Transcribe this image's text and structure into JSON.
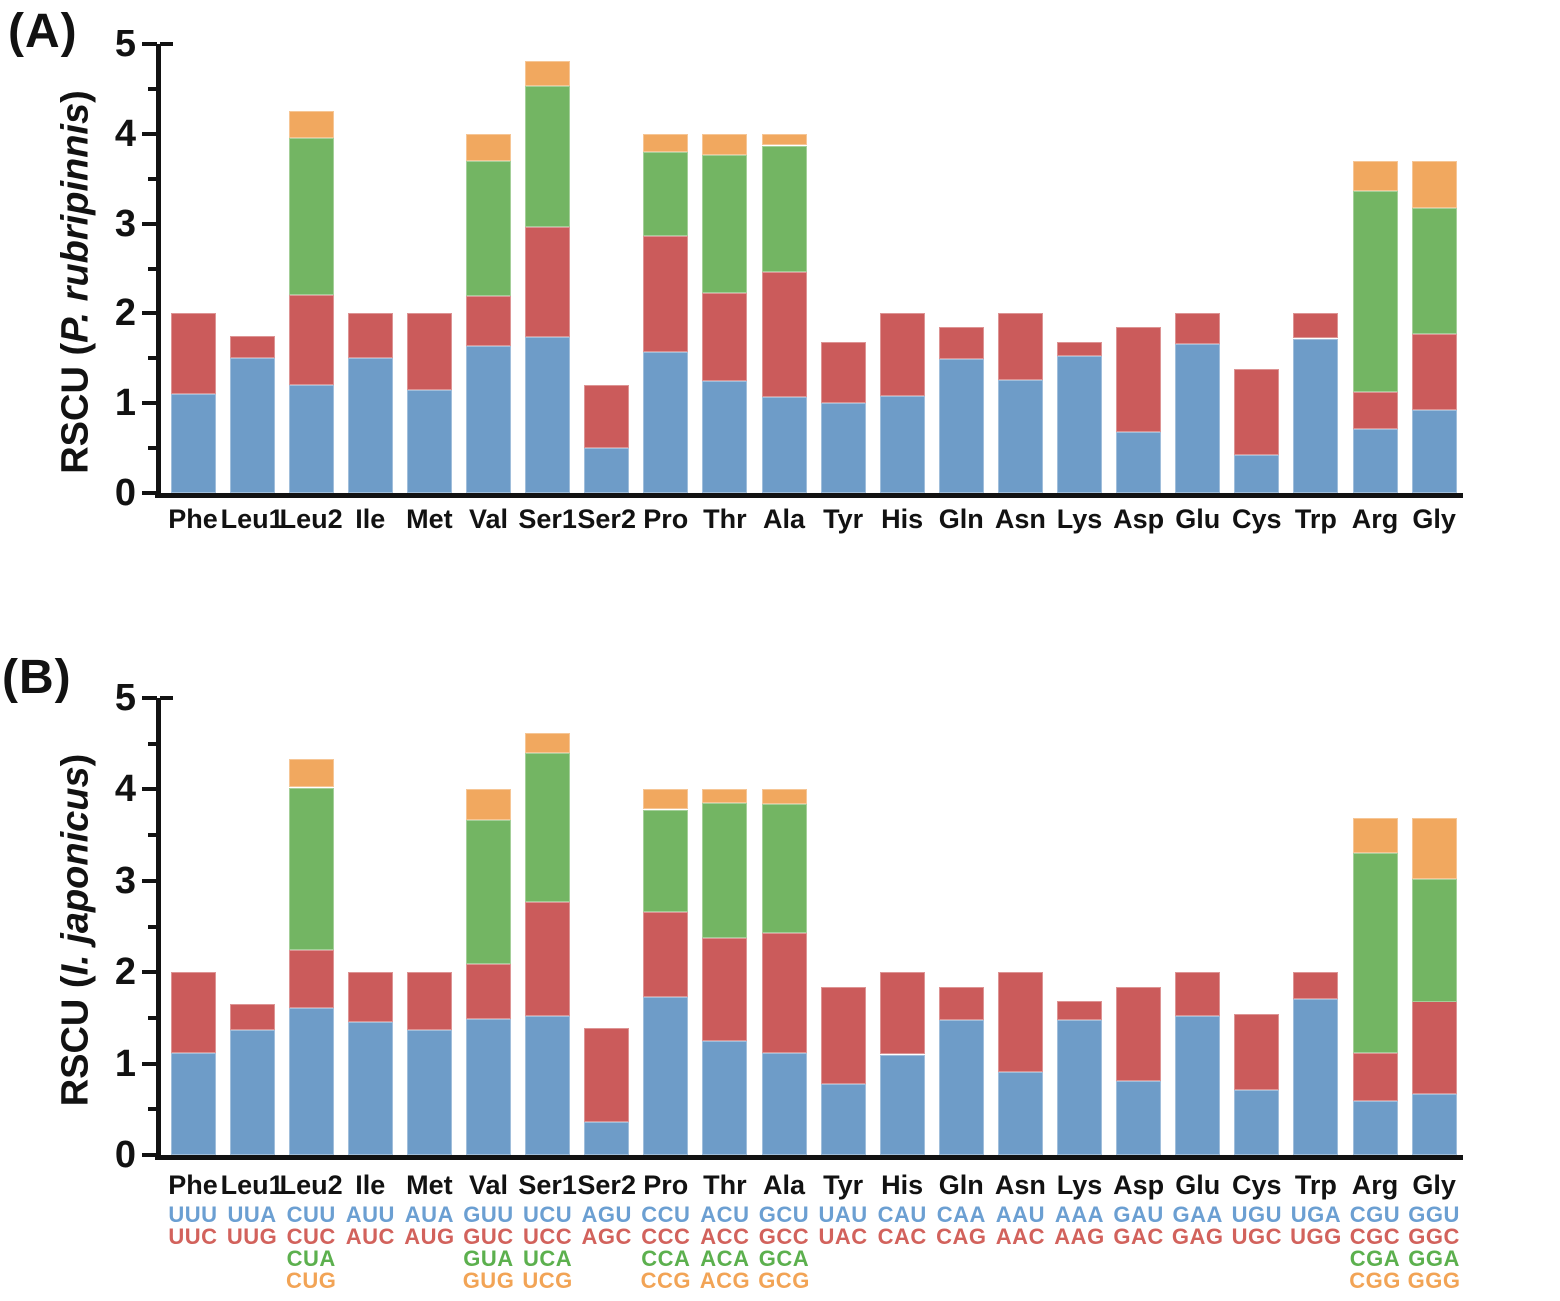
{
  "figure": {
    "panel_a": {
      "letter": "(A)",
      "y_title_prefix": "RSCU (",
      "y_title_species": "P. rubripinnis",
      "y_title_suffix": ")"
    },
    "panel_b": {
      "letter": "(B)",
      "y_title_prefix": "RSCU (",
      "y_title_species": "I. japonicus",
      "y_title_suffix": ")"
    }
  },
  "palette": {
    "bar": {
      "blue": "#6e9cc8",
      "red": "#cb5b5b",
      "green": "#73b563",
      "orange": "#f1a85f"
    },
    "text": {
      "blue": "#6b9fd2",
      "red": "#d2625c",
      "green": "#5cb04e",
      "orange": "#f2a456"
    },
    "axis": "#121212"
  },
  "categories": [
    "Phe",
    "Leu1",
    "Leu2",
    "Ile",
    "Met",
    "Val",
    "Ser1",
    "Ser2",
    "Pro",
    "Thr",
    "Ala",
    "Tyr",
    "His",
    "Gln",
    "Asn",
    "Lys",
    "Asp",
    "Glu",
    "Cys",
    "Trp",
    "Arg",
    "Gly"
  ],
  "codons": {
    "Phe": [
      "UUU",
      "UUC"
    ],
    "Leu1": [
      "UUA",
      "UUG"
    ],
    "Leu2": [
      "CUU",
      "CUC",
      "CUA",
      "CUG"
    ],
    "Ile": [
      "AUU",
      "AUC"
    ],
    "Met": [
      "AUA",
      "AUG"
    ],
    "Val": [
      "GUU",
      "GUC",
      "GUA",
      "GUG"
    ],
    "Ser1": [
      "UCU",
      "UCC",
      "UCA",
      "UCG"
    ],
    "Ser2": [
      "AGU",
      "AGC"
    ],
    "Pro": [
      "CCU",
      "CCC",
      "CCA",
      "CCG"
    ],
    "Thr": [
      "ACU",
      "ACC",
      "ACA",
      "ACG"
    ],
    "Ala": [
      "GCU",
      "GCC",
      "GCA",
      "GCG"
    ],
    "Tyr": [
      "UAU",
      "UAC"
    ],
    "His": [
      "CAU",
      "CAC"
    ],
    "Gln": [
      "CAA",
      "CAG"
    ],
    "Asn": [
      "AAU",
      "AAC"
    ],
    "Lys": [
      "AAA",
      "AAG"
    ],
    "Asp": [
      "GAU",
      "GAC"
    ],
    "Glu": [
      "GAA",
      "GAG"
    ],
    "Cys": [
      "UGU",
      "UGC"
    ],
    "Trp": [
      "UGA",
      "UGG"
    ],
    "Arg": [
      "CGU",
      "CGC",
      "CGA",
      "CGG"
    ],
    "Gly": [
      "GGU",
      "GGC",
      "GGA",
      "GGG"
    ]
  },
  "chart_data": [
    {
      "id": "A",
      "type": "bar",
      "stacked": true,
      "title": "RSCU (P. rubripinnis)",
      "xlabel": "",
      "ylabel": "RSCU (P. rubripinnis)",
      "ylim": [
        0,
        5
      ],
      "yticks": [
        0,
        1,
        2,
        3,
        4,
        5
      ],
      "minor_tick_step": 0.5,
      "grid": false,
      "legend_position": "none",
      "segment_color_order": [
        "blue",
        "red",
        "green",
        "orange"
      ],
      "values": {
        "Phe": [
          1.1,
          0.9
        ],
        "Leu1": [
          1.5,
          0.25
        ],
        "Leu2": [
          1.2,
          1.0,
          1.75,
          0.3
        ],
        "Ile": [
          1.5,
          0.5
        ],
        "Met": [
          1.15,
          0.85
        ],
        "Val": [
          1.64,
          0.55,
          1.51,
          0.3
        ],
        "Ser1": [
          1.74,
          1.22,
          1.57,
          0.28
        ],
        "Ser2": [
          0.5,
          0.7
        ],
        "Pro": [
          1.57,
          1.29,
          0.94,
          0.2
        ],
        "Thr": [
          1.25,
          0.98,
          1.53,
          0.24
        ],
        "Ala": [
          1.07,
          1.39,
          1.41,
          0.13
        ],
        "Tyr": [
          1.0,
          0.68
        ],
        "His": [
          1.08,
          0.92
        ],
        "Gln": [
          1.49,
          0.36
        ],
        "Asn": [
          1.26,
          0.74
        ],
        "Lys": [
          1.53,
          0.15
        ],
        "Asp": [
          0.68,
          1.17
        ],
        "Glu": [
          1.66,
          0.34
        ],
        "Cys": [
          0.42,
          0.96
        ],
        "Trp": [
          1.72,
          0.28
        ],
        "Arg": [
          0.71,
          0.41,
          2.24,
          0.34
        ],
        "Gly": [
          0.92,
          0.85,
          1.4,
          0.53
        ]
      }
    },
    {
      "id": "B",
      "type": "bar",
      "stacked": true,
      "title": "RSCU (I. japonicus)",
      "xlabel": "",
      "ylabel": "RSCU (I. japonicus)",
      "ylim": [
        0,
        5
      ],
      "yticks": [
        0,
        1,
        2,
        3,
        4,
        5
      ],
      "minor_tick_step": 0.5,
      "grid": false,
      "legend_position": "none",
      "segment_color_order": [
        "blue",
        "red",
        "green",
        "orange"
      ],
      "values": {
        "Phe": [
          1.12,
          0.88
        ],
        "Leu1": [
          1.37,
          0.28
        ],
        "Leu2": [
          1.61,
          0.63,
          1.78,
          0.31
        ],
        "Ile": [
          1.46,
          0.54
        ],
        "Met": [
          1.37,
          0.63
        ],
        "Val": [
          1.49,
          0.6,
          1.58,
          0.33
        ],
        "Ser1": [
          1.52,
          1.25,
          1.63,
          0.22
        ],
        "Ser2": [
          0.36,
          1.03
        ],
        "Pro": [
          1.73,
          0.93,
          1.12,
          0.22
        ],
        "Thr": [
          1.25,
          1.12,
          1.48,
          0.15
        ],
        "Ala": [
          1.12,
          1.31,
          1.41,
          0.16
        ],
        "Tyr": [
          0.78,
          1.06
        ],
        "His": [
          1.1,
          0.9
        ],
        "Gln": [
          1.48,
          0.36
        ],
        "Asn": [
          0.91,
          1.09
        ],
        "Lys": [
          1.48,
          0.2
        ],
        "Asp": [
          0.81,
          1.03
        ],
        "Glu": [
          1.52,
          0.48
        ],
        "Cys": [
          0.71,
          0.83
        ],
        "Trp": [
          1.71,
          0.29
        ],
        "Arg": [
          0.59,
          0.53,
          2.18,
          0.39
        ],
        "Gly": [
          0.67,
          1.01,
          1.34,
          0.67
        ]
      }
    }
  ]
}
